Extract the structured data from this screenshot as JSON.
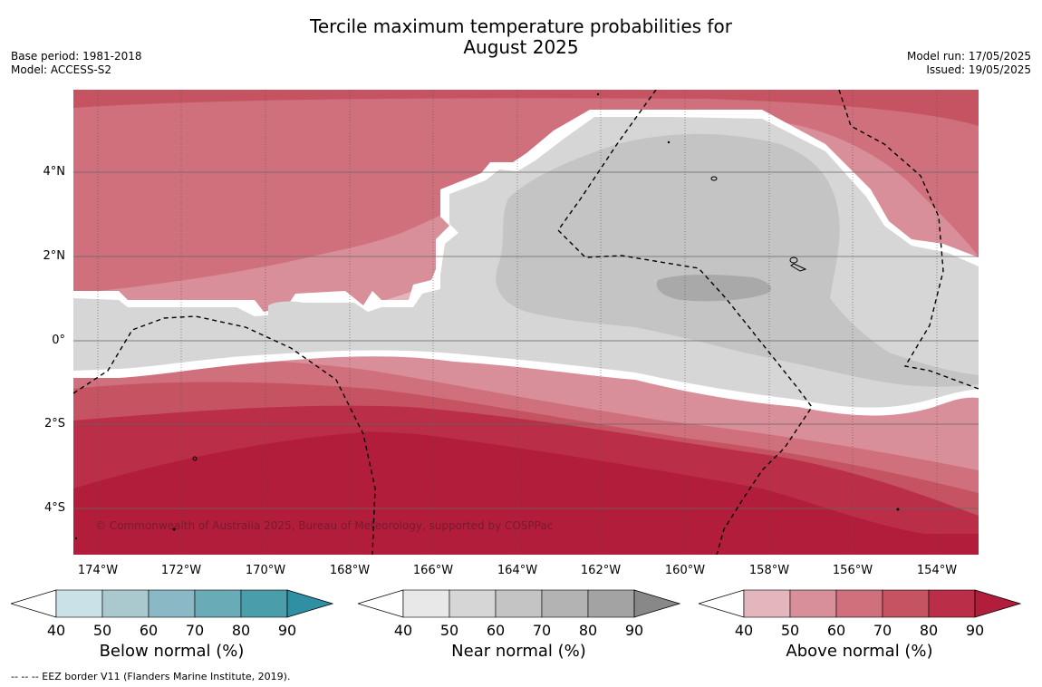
{
  "title": {
    "line1": "Tercile maximum temperature probabilities for",
    "line2": "August 2025"
  },
  "meta_left": {
    "base_period": "Base period: 1981-2018",
    "model": "Model: ACCESS-S2"
  },
  "meta_right": {
    "model_run": "Model run: 17/05/2025",
    "issued": "Issued: 19/05/2025"
  },
  "map": {
    "lat_labels": [
      "4°N",
      "2°N",
      "0°",
      "2°S",
      "4°S"
    ],
    "lon_labels": [
      "174°W",
      "172°W",
      "170°W",
      "168°W",
      "166°W",
      "164°W",
      "162°W",
      "160°W",
      "158°W",
      "156°W",
      "154°W"
    ],
    "copyright": "© Commonwealth of Australia 2025, Bureau of Meteorology, supported by COSPPac"
  },
  "colorbars": [
    {
      "title": "Below normal (%)",
      "ticks": [
        "40",
        "50",
        "60",
        "70",
        "80",
        "90"
      ],
      "colors": [
        "#c9e1e7",
        "#a9c9cf",
        "#8ab8c4",
        "#6aabb8",
        "#4a9eab",
        "#2f8fa3"
      ]
    },
    {
      "title": "Near normal (%)",
      "ticks": [
        "40",
        "50",
        "60",
        "70",
        "80",
        "90"
      ],
      "colors": [
        "#e8e8e8",
        "#d6d6d6",
        "#c4c4c4",
        "#b3b3b3",
        "#a3a3a3",
        "#888888"
      ]
    },
    {
      "title": "Above normal (%)",
      "ticks": [
        "40",
        "50",
        "60",
        "70",
        "80",
        "90"
      ],
      "colors": [
        "#e2b6bc",
        "#d98f99",
        "#cf707c",
        "#c65362",
        "#bb2e47",
        "#b21d3b"
      ]
    }
  ],
  "footer": "--  --  -- EEZ border V11 (Flanders Marine Institute, 2019)."
}
